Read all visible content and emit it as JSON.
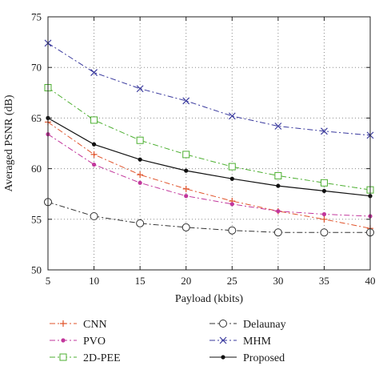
{
  "chart_data": {
    "type": "line",
    "title": "",
    "xlabel": "Payload (kbits)",
    "ylabel": "Averaged PSNR (dB)",
    "xlim": [
      5,
      40
    ],
    "ylim": [
      50,
      75
    ],
    "x_ticks": [
      5,
      10,
      15,
      20,
      25,
      30,
      35,
      40
    ],
    "y_ticks": [
      50,
      55,
      60,
      65,
      70,
      75
    ],
    "grid": true,
    "legend_position": "bottom",
    "x": [
      5,
      10,
      15,
      20,
      25,
      30,
      35,
      40
    ],
    "series": [
      {
        "name": "CNN",
        "values": [
          64.6,
          61.4,
          59.4,
          58.0,
          56.8,
          55.8,
          55.0,
          54.1
        ],
        "color": "#e0532b",
        "marker": "plus",
        "dash": "7 3 2 3"
      },
      {
        "name": "PVO",
        "values": [
          63.4,
          60.4,
          58.6,
          57.3,
          56.5,
          55.8,
          55.5,
          55.3
        ],
        "color": "#c2379c",
        "marker": "dot",
        "dash": "7 3 2 3"
      },
      {
        "name": "2D-PEE",
        "values": [
          68.0,
          64.8,
          62.8,
          61.4,
          60.2,
          59.3,
          58.6,
          57.9
        ],
        "color": "#4caf30",
        "marker": "square",
        "dash": "7 3 2 3"
      },
      {
        "name": "Delaunay",
        "values": [
          56.7,
          55.3,
          54.6,
          54.2,
          53.9,
          53.7,
          53.7,
          53.7
        ],
        "color": "#333333",
        "marker": "circle",
        "dash": "7 3 2 3"
      },
      {
        "name": "MHM",
        "values": [
          72.4,
          69.5,
          67.9,
          66.7,
          65.2,
          64.2,
          63.7,
          63.3
        ],
        "color": "#3a3a9e",
        "marker": "x",
        "dash": "7 3 2 3"
      },
      {
        "name": "Proposed",
        "values": [
          65.0,
          62.4,
          60.9,
          59.8,
          59.0,
          58.3,
          57.8,
          57.3
        ],
        "color": "#111111",
        "marker": "dot",
        "dash": ""
      }
    ]
  }
}
